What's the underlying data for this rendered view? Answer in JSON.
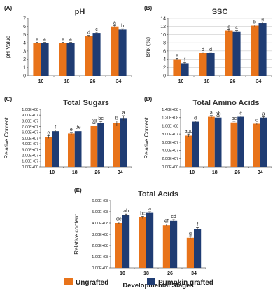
{
  "colors": {
    "ungrafted": "#E8731A",
    "grafted": "#1F3C73",
    "title": "#333333",
    "axis": "#666666",
    "grid": "#cccccc"
  },
  "legend": {
    "ungrafted_label": "Ungrafted",
    "grafted_label": "Pumpkin grafted"
  },
  "shared_xlabel": "Developmental Stages",
  "chart_data": [
    {
      "panel": "(A)",
      "type": "bar",
      "title": "pH",
      "ylabel": "pH Value",
      "xlabel": "",
      "categories": [
        "10",
        "18",
        "26",
        "34"
      ],
      "yticks": [
        "0",
        "1",
        "2",
        "3",
        "4",
        "5",
        "6",
        "7"
      ],
      "ylim": [
        0,
        7
      ],
      "grid": false,
      "series": [
        {
          "name": "Ungrafted",
          "values": [
            4.0,
            4.0,
            4.8,
            6.0
          ],
          "errors": [
            0.05,
            0.05,
            0.1,
            0.12
          ],
          "letters": [
            "e",
            "e",
            "d",
            "a"
          ]
        },
        {
          "name": "Pumpkin grafted",
          "values": [
            4.0,
            4.0,
            5.2,
            5.6
          ],
          "errors": [
            0.05,
            0.05,
            0.1,
            0.1
          ],
          "letters": [
            "e",
            "e",
            "c",
            "b"
          ]
        }
      ]
    },
    {
      "panel": "(B)",
      "type": "bar",
      "title": "SSC",
      "ylabel": "Brix (%)",
      "xlabel": "",
      "categories": [
        "10",
        "18",
        "26",
        "34"
      ],
      "yticks": [
        "0",
        "2",
        "4",
        "6",
        "8",
        "10",
        "12",
        "14"
      ],
      "ylim": [
        0,
        14
      ],
      "grid": true,
      "series": [
        {
          "name": "Ungrafted",
          "values": [
            4.0,
            5.5,
            11.0,
            12.2
          ],
          "errors": [
            0.2,
            0.1,
            0.2,
            0.2
          ],
          "letters": [
            "e",
            "d",
            "c",
            "b"
          ]
        },
        {
          "name": "Pumpkin grafted",
          "values": [
            3.0,
            5.5,
            10.8,
            12.8
          ],
          "errors": [
            0.2,
            0.1,
            0.2,
            0.3
          ],
          "letters": [
            "f",
            "d",
            "c",
            "a"
          ]
        }
      ]
    },
    {
      "panel": "(C)",
      "type": "bar",
      "title": "Total Sugars",
      "ylabel": "Relative Content",
      "xlabel": "",
      "categories": [
        "10",
        "18",
        "26",
        "34"
      ],
      "yticks": [
        "0.00E+00",
        "1.00E+07",
        "2.00E+07",
        "3.00E+07",
        "4.00E+07",
        "5.00E+07",
        "6.00E+07",
        "7.00E+07",
        "8.00E+07",
        "9.00E+07",
        "1.00E+08"
      ],
      "ylim": [
        0,
        100000000
      ],
      "grid": false,
      "series": [
        {
          "name": "Ungrafted",
          "values": [
            52000000,
            58000000,
            72000000,
            76000000
          ],
          "errors": [
            2500000,
            2000000,
            3000000,
            4000000
          ],
          "letters": [
            "e",
            "e",
            "cd",
            "b"
          ]
        },
        {
          "name": "Pumpkin grafted",
          "values": [
            62000000,
            62000000,
            76000000,
            85000000
          ],
          "errors": [
            2000000,
            2000000,
            3000000,
            4000000
          ],
          "letters": [
            "f",
            "de",
            "bc",
            "a"
          ]
        }
      ]
    },
    {
      "panel": "(D)",
      "type": "bar",
      "title": "Total Amino Acids",
      "ylabel": "Relative Content",
      "xlabel": "",
      "categories": [
        "10",
        "18",
        "26",
        "34"
      ],
      "yticks": [
        "0.00E+00",
        "2.00E+07",
        "4.00E+07",
        "6.00E+07",
        "8.00E+07",
        "1.00E+08",
        "1.20E+08",
        "1.40E+08"
      ],
      "ylim": [
        0,
        140000000
      ],
      "grid": false,
      "series": [
        {
          "name": "Ungrafted",
          "values": [
            76000000,
            122000000,
            108000000,
            105000000
          ],
          "errors": [
            4000000,
            3000000,
            3000000,
            2000000
          ],
          "letters": [
            "abc",
            "a",
            "bc",
            "c"
          ]
        },
        {
          "name": "Pumpkin grafted",
          "values": [
            110000000,
            120000000,
            122000000,
            120000000
          ],
          "errors": [
            2000000,
            2000000,
            2000000,
            2000000
          ],
          "letters": [
            "d",
            "ab",
            "c",
            "a"
          ]
        }
      ]
    },
    {
      "panel": "(E)",
      "type": "bar",
      "title": "Total Acids",
      "ylabel": "Relative content",
      "xlabel": "Developmental Stages",
      "categories": [
        "10",
        "18",
        "26",
        "34"
      ],
      "yticks": [
        "0.00E+00",
        "1.00E+08",
        "2.00E+08",
        "3.00E+08",
        "4.00E+08",
        "5.00E+08",
        "6.00E+08"
      ],
      "ylim": [
        0,
        600000000
      ],
      "grid": false,
      "series": [
        {
          "name": "Ungrafted",
          "values": [
            400000000,
            450000000,
            380000000,
            270000000
          ],
          "errors": [
            10000000,
            10000000,
            10000000,
            12000000
          ],
          "letters": [
            "de",
            "bc",
            "ef",
            "g"
          ]
        },
        {
          "name": "Pumpkin grafted",
          "values": [
            470000000,
            490000000,
            420000000,
            350000000
          ],
          "errors": [
            10000000,
            10000000,
            12000000,
            10000000
          ],
          "letters": [
            "ab",
            "a",
            "cd",
            "f"
          ]
        }
      ]
    }
  ]
}
